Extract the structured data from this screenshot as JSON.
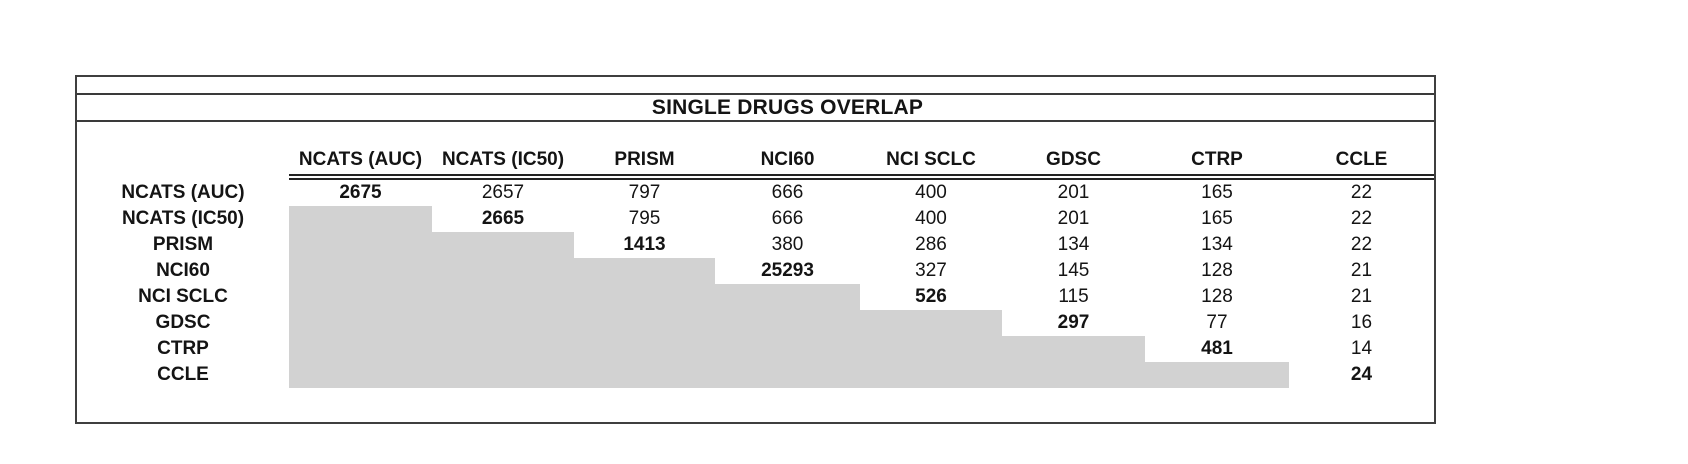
{
  "chart_data": {
    "type": "table",
    "title": "SINGLE DRUGS OVERLAP",
    "description": "Pairwise overlap matrix of single drugs across screening datasets; upper triangle holds counts, diagonal (self-overlap) values are bold, lower triangle is shaded gray with no values",
    "columns": [
      "NCATS (AUC)",
      "NCATS (IC50)",
      "PRISM",
      "NCI60",
      "NCI SCLC",
      "GDSC",
      "CTRP",
      "CCLE"
    ],
    "row_labels": [
      "NCATS (AUC)",
      "NCATS (IC50)",
      "PRISM",
      "NCI60",
      "NCI SCLC",
      "GDSC",
      "CTRP",
      "CCLE"
    ],
    "cells": [
      [
        2675,
        2657,
        797,
        666,
        400,
        201,
        165,
        22
      ],
      [
        null,
        2665,
        795,
        666,
        400,
        201,
        165,
        22
      ],
      [
        null,
        null,
        1413,
        380,
        286,
        134,
        134,
        22
      ],
      [
        null,
        null,
        null,
        25293,
        327,
        145,
        128,
        21
      ],
      [
        null,
        null,
        null,
        null,
        526,
        115,
        128,
        21
      ],
      [
        null,
        null,
        null,
        null,
        null,
        297,
        77,
        16
      ],
      [
        null,
        null,
        null,
        null,
        null,
        null,
        481,
        14
      ],
      [
        null,
        null,
        null,
        null,
        null,
        null,
        null,
        24
      ]
    ],
    "diagonal_bold": true,
    "legend_position": "none",
    "grid": "off",
    "colors": {
      "shaded_cell": "#d2d2d2",
      "outer_border": "#3f3f3f",
      "header_underline": "#232323",
      "text": "#141414",
      "background": "#ffffff"
    }
  }
}
